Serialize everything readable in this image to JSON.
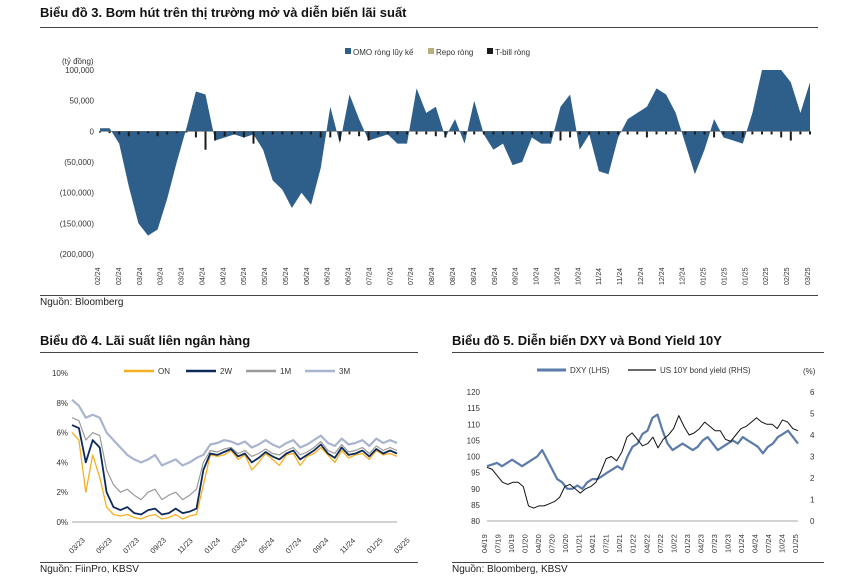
{
  "chart3": {
    "title": "Biểu đồ 3. Bơm hút trên thị trường mở và diễn biến lãi suất",
    "source": "Nguồn: Bloomberg",
    "chart_data": {
      "type": "area",
      "ylabel": "(tỷ đồng)",
      "ylim": [
        -200000,
        100000
      ],
      "yticks": [
        "100,000",
        "50,000",
        "0",
        "(50,000)",
        "(100,000)",
        "(150,000)",
        "(200,000)"
      ],
      "ytick_values": [
        100000,
        50000,
        0,
        -50000,
        -100000,
        -150000,
        -200000
      ],
      "x_labels": [
        "02/24",
        "02/24",
        "03/24",
        "03/24",
        "03/24",
        "04/24",
        "04/24",
        "05/24",
        "05/24",
        "05/24",
        "06/24",
        "06/24",
        "06/24",
        "07/24",
        "07/24",
        "07/24",
        "08/24",
        "08/24",
        "08/24",
        "09/24",
        "09/24",
        "10/24",
        "10/24",
        "10/24",
        "11/24",
        "11/24",
        "12/24",
        "12/24",
        "12/24",
        "01/25",
        "01/25",
        "01/25",
        "02/25",
        "02/25",
        "03/25"
      ],
      "legend": [
        "OMO ròng lũy kế",
        "Repo ròng",
        "T-bill ròng"
      ],
      "colors": {
        "omo": "#2E5F8A",
        "repo": "#B5B07A",
        "tbill": "#1A1A1A"
      },
      "series": [
        {
          "name": "OMO ròng lũy kế",
          "values": [
            5000,
            5000,
            -20000,
            -90000,
            -150000,
            -170000,
            -160000,
            -110000,
            -50000,
            5000,
            65000,
            60000,
            -15000,
            -10000,
            -5000,
            -10000,
            -5000,
            -30000,
            -80000,
            -95000,
            -125000,
            -100000,
            -120000,
            -60000,
            40000,
            -20000,
            60000,
            20000,
            -15000,
            -10000,
            -5000,
            -20000,
            -20000,
            70000,
            30000,
            40000,
            -10000,
            20000,
            -20000,
            50000,
            -5000,
            -30000,
            -20000,
            -55000,
            -50000,
            -10000,
            -20000,
            -20000,
            40000,
            60000,
            -30000,
            -5000,
            -65000,
            -70000,
            -10000,
            20000,
            30000,
            40000,
            70000,
            60000,
            30000,
            -20000,
            -70000,
            -30000,
            20000,
            -10000,
            -15000,
            -20000,
            30000,
            100000,
            100000,
            100000,
            80000,
            30000,
            80000
          ]
        },
        {
          "name": "T-bill ròng",
          "values": [
            -2000,
            -3000,
            -5000,
            -8000,
            -5000,
            -3000,
            -8000,
            -5000,
            -3000,
            -2000,
            -10000,
            -30000,
            -15000,
            -8000,
            -5000,
            -10000,
            -20000,
            -5000,
            -5000,
            -5000,
            -5000,
            -5000,
            -5000,
            -10000,
            -10000,
            -15000,
            -5000,
            -8000,
            -15000,
            -5000,
            -5000,
            -5000,
            -5000,
            -5000,
            -5000,
            -8000,
            -10000,
            -5000,
            -5000,
            -5000,
            -5000,
            -5000,
            -5000,
            -5000,
            -5000,
            -5000,
            -5000,
            -10000,
            -15000,
            -10000,
            -5000,
            -5000,
            -5000,
            -5000,
            -5000,
            -5000,
            -5000,
            -10000,
            -5000,
            -5000,
            -5000,
            -5000,
            -5000,
            -5000,
            -10000,
            -5000,
            -5000,
            -10000,
            -5000,
            -5000,
            -5000,
            -10000,
            -15000,
            -5000,
            -5000
          ]
        }
      ]
    }
  },
  "chart4": {
    "title": "Biểu đồ 4. Lãi suất liên ngân hàng",
    "source": "Nguồn: FiinPro, KBSV",
    "chart_data": {
      "type": "line",
      "ylim": [
        0,
        10
      ],
      "yticks": [
        "10%",
        "8%",
        "6%",
        "4%",
        "2%",
        "0%"
      ],
      "ytick_values": [
        10,
        8,
        6,
        4,
        2,
        0
      ],
      "x_labels": [
        "03/23",
        "05/23",
        "07/23",
        "09/23",
        "11/23",
        "01/24",
        "03/24",
        "05/24",
        "07/24",
        "09/24",
        "11/24",
        "01/25",
        "03/25"
      ],
      "legend": [
        "ON",
        "2W",
        "1M",
        "3M"
      ],
      "colors": {
        "ON": "#F5B021",
        "2W": "#0D2A5A",
        "1M": "#9A9A9A",
        "3M": "#A9B4CE"
      },
      "series": [
        {
          "name": "ON",
          "values": [
            6.0,
            5.5,
            2.0,
            4.5,
            3.0,
            1.0,
            0.5,
            0.4,
            0.5,
            0.3,
            0.2,
            0.4,
            0.5,
            0.2,
            0.3,
            0.5,
            0.2,
            0.4,
            0.5,
            2.5,
            4.5,
            4.4,
            4.5,
            4.8,
            4.2,
            4.5,
            3.5,
            4.0,
            4.6,
            4.2,
            3.8,
            4.5,
            4.6,
            3.8,
            4.4,
            4.6,
            5.0,
            4.5,
            4.0,
            4.8,
            4.3,
            4.5,
            4.6,
            4.2,
            4.8,
            4.5,
            4.6,
            4.4
          ]
        },
        {
          "name": "2W",
          "values": [
            6.5,
            6.3,
            4.0,
            5.5,
            5.0,
            2.0,
            1.0,
            0.8,
            1.0,
            0.6,
            0.5,
            0.8,
            0.9,
            0.5,
            0.6,
            0.9,
            0.6,
            0.7,
            0.9,
            3.5,
            4.6,
            4.5,
            4.7,
            4.9,
            4.4,
            4.6,
            4.0,
            4.3,
            4.7,
            4.4,
            4.2,
            4.6,
            4.8,
            4.2,
            4.5,
            4.8,
            5.2,
            4.6,
            4.3,
            5.0,
            4.5,
            4.6,
            4.8,
            4.4,
            4.9,
            4.6,
            4.8,
            4.6
          ]
        },
        {
          "name": "1M",
          "values": [
            7.0,
            6.8,
            5.5,
            6.0,
            5.8,
            3.5,
            2.5,
            2.0,
            2.2,
            1.8,
            1.5,
            2.0,
            2.2,
            1.5,
            1.8,
            2.0,
            1.5,
            1.8,
            2.2,
            4.0,
            4.8,
            4.7,
            4.9,
            5.0,
            4.6,
            4.8,
            4.4,
            4.6,
            4.9,
            4.6,
            4.5,
            4.8,
            5.0,
            4.5,
            4.7,
            5.0,
            5.4,
            4.8,
            4.6,
            5.2,
            4.7,
            4.8,
            5.0,
            4.6,
            5.1,
            4.8,
            5.0,
            4.8
          ]
        },
        {
          "name": "3M",
          "values": [
            8.2,
            7.8,
            7.0,
            7.2,
            7.0,
            6.0,
            5.5,
            5.0,
            4.5,
            4.2,
            4.0,
            4.2,
            4.5,
            3.8,
            4.0,
            4.2,
            3.8,
            4.0,
            4.3,
            4.5,
            5.2,
            5.3,
            5.5,
            5.4,
            5.2,
            5.4,
            5.0,
            5.2,
            5.5,
            5.2,
            5.0,
            5.3,
            5.5,
            5.0,
            5.2,
            5.5,
            5.8,
            5.3,
            5.1,
            5.6,
            5.2,
            5.3,
            5.5,
            5.1,
            5.6,
            5.3,
            5.5,
            5.3
          ]
        }
      ]
    }
  },
  "chart5": {
    "title": "Biểu đồ 5. Diễn biến DXY và Bond Yield 10Y",
    "source": "Nguồn: Bloomberg, KBSV",
    "chart_data": {
      "type": "line",
      "ylabel_right": "(%)",
      "ylim_left": [
        80,
        120
      ],
      "ylim_right": [
        0,
        6
      ],
      "yticks_left": [
        "120",
        "115",
        "110",
        "105",
        "100",
        "95",
        "90",
        "85",
        "80"
      ],
      "ytick_values_left": [
        120,
        115,
        110,
        105,
        100,
        95,
        90,
        85,
        80
      ],
      "yticks_right": [
        "6",
        "5",
        "4",
        "3",
        "2",
        "1",
        "0"
      ],
      "ytick_values_right": [
        6,
        5,
        4,
        3,
        2,
        1,
        0
      ],
      "x_labels": [
        "04/19",
        "07/19",
        "10/19",
        "01/20",
        "04/20",
        "07/20",
        "10/20",
        "01/21",
        "04/21",
        "07/21",
        "10/21",
        "01/22",
        "04/22",
        "07/22",
        "10/22",
        "01/23",
        "04/23",
        "07/23",
        "10/23",
        "01/24",
        "04/24",
        "07/24",
        "10/24",
        "01/25"
      ],
      "legend": [
        "DXY (LHS)",
        "US 10Y bond yield (RHS)"
      ],
      "colors": {
        "dxy": "#5B7BA8",
        "yield": "#111111"
      },
      "series": [
        {
          "name": "DXY (LHS)",
          "values": [
            97,
            97.5,
            98,
            97,
            98,
            99,
            98,
            97,
            98,
            99,
            100,
            102,
            99,
            96,
            93,
            92,
            90,
            90,
            91,
            90,
            92,
            93,
            93,
            94,
            95,
            96,
            97,
            96,
            100,
            103,
            104,
            107,
            108,
            112,
            113,
            108,
            104,
            102,
            103,
            104,
            103,
            102,
            103,
            105,
            106,
            104,
            102,
            103,
            104,
            105,
            104,
            106,
            105,
            104,
            103,
            101,
            103,
            104,
            106,
            107,
            108,
            106,
            104
          ]
        },
        {
          "name": "US 10Y bond yield (RHS)",
          "values": [
            2.5,
            2.4,
            2.1,
            1.8,
            1.7,
            1.8,
            1.8,
            1.6,
            0.7,
            0.6,
            0.7,
            0.7,
            0.8,
            0.9,
            1.1,
            1.6,
            1.7,
            1.5,
            1.3,
            1.5,
            1.6,
            1.8,
            2.3,
            2.9,
            3.0,
            2.8,
            3.2,
            3.9,
            4.1,
            3.8,
            3.5,
            3.6,
            3.9,
            3.4,
            3.8,
            4.0,
            4.3,
            4.9,
            4.4,
            4.0,
            4.1,
            4.3,
            4.6,
            4.4,
            4.2,
            4.2,
            3.8,
            3.7,
            4.0,
            4.3,
            4.4,
            4.6,
            4.8,
            4.6,
            4.5,
            4.5,
            4.3,
            4.7,
            4.6,
            4.3,
            4.2
          ]
        }
      ]
    }
  }
}
